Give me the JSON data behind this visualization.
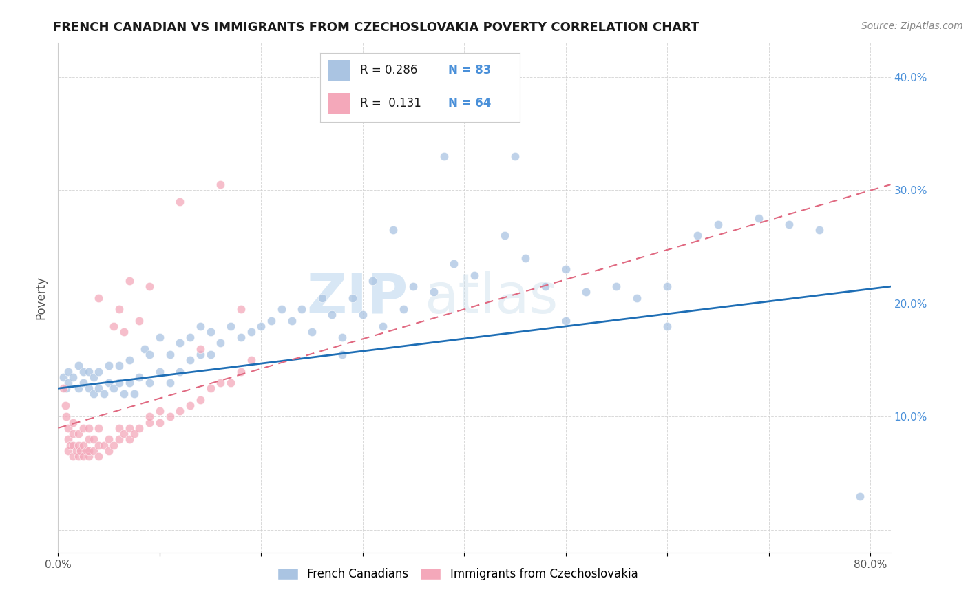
{
  "title": "FRENCH CANADIAN VS IMMIGRANTS FROM CZECHOSLOVAKIA POVERTY CORRELATION CHART",
  "source": "Source: ZipAtlas.com",
  "ylabel": "Poverty",
  "xlim": [
    0.0,
    0.82
  ],
  "ylim": [
    -0.02,
    0.43
  ],
  "blue_color": "#aac4e2",
  "pink_color": "#f4a8ba",
  "blue_line_color": "#1e6eb5",
  "pink_line_color": "#e06880",
  "watermark_text": "ZIP",
  "watermark_text2": "atlas",
  "legend_R1": "R = 0.286",
  "legend_N1": "N = 83",
  "legend_R2": "R =  0.131",
  "legend_N2": "N = 64",
  "blue_scatter_x": [
    0.005,
    0.008,
    0.01,
    0.01,
    0.015,
    0.02,
    0.02,
    0.025,
    0.025,
    0.03,
    0.03,
    0.035,
    0.035,
    0.04,
    0.04,
    0.045,
    0.05,
    0.05,
    0.055,
    0.06,
    0.06,
    0.065,
    0.07,
    0.07,
    0.075,
    0.08,
    0.085,
    0.09,
    0.09,
    0.1,
    0.1,
    0.11,
    0.11,
    0.12,
    0.12,
    0.13,
    0.13,
    0.14,
    0.14,
    0.15,
    0.15,
    0.16,
    0.17,
    0.18,
    0.19,
    0.2,
    0.21,
    0.22,
    0.23,
    0.24,
    0.25,
    0.26,
    0.27,
    0.28,
    0.29,
    0.3,
    0.31,
    0.32,
    0.34,
    0.35,
    0.37,
    0.39,
    0.41,
    0.44,
    0.46,
    0.48,
    0.5,
    0.52,
    0.55,
    0.57,
    0.6,
    0.63,
    0.65,
    0.69,
    0.72,
    0.75,
    0.79,
    0.5,
    0.38,
    0.45,
    0.33,
    0.28,
    0.6
  ],
  "blue_scatter_y": [
    0.135,
    0.125,
    0.14,
    0.13,
    0.135,
    0.125,
    0.145,
    0.13,
    0.14,
    0.125,
    0.14,
    0.12,
    0.135,
    0.125,
    0.14,
    0.12,
    0.13,
    0.145,
    0.125,
    0.13,
    0.145,
    0.12,
    0.13,
    0.15,
    0.12,
    0.135,
    0.16,
    0.13,
    0.155,
    0.14,
    0.17,
    0.13,
    0.155,
    0.14,
    0.165,
    0.15,
    0.17,
    0.155,
    0.18,
    0.155,
    0.175,
    0.165,
    0.18,
    0.17,
    0.175,
    0.18,
    0.185,
    0.195,
    0.185,
    0.195,
    0.175,
    0.205,
    0.19,
    0.17,
    0.205,
    0.19,
    0.22,
    0.18,
    0.195,
    0.215,
    0.21,
    0.235,
    0.225,
    0.26,
    0.24,
    0.215,
    0.23,
    0.21,
    0.215,
    0.205,
    0.215,
    0.26,
    0.27,
    0.275,
    0.27,
    0.265,
    0.03,
    0.185,
    0.33,
    0.33,
    0.265,
    0.155,
    0.18
  ],
  "pink_scatter_x": [
    0.005,
    0.007,
    0.008,
    0.01,
    0.01,
    0.01,
    0.012,
    0.015,
    0.015,
    0.015,
    0.015,
    0.018,
    0.02,
    0.02,
    0.02,
    0.022,
    0.025,
    0.025,
    0.025,
    0.028,
    0.03,
    0.03,
    0.03,
    0.03,
    0.035,
    0.035,
    0.04,
    0.04,
    0.04,
    0.045,
    0.05,
    0.05,
    0.055,
    0.06,
    0.06,
    0.065,
    0.07,
    0.07,
    0.075,
    0.08,
    0.09,
    0.09,
    0.1,
    0.1,
    0.11,
    0.12,
    0.13,
    0.14,
    0.15,
    0.16,
    0.17,
    0.18,
    0.19,
    0.055,
    0.065,
    0.08,
    0.04,
    0.06,
    0.07,
    0.09,
    0.14,
    0.18,
    0.12,
    0.16
  ],
  "pink_scatter_y": [
    0.125,
    0.11,
    0.1,
    0.09,
    0.08,
    0.07,
    0.075,
    0.065,
    0.075,
    0.085,
    0.095,
    0.07,
    0.065,
    0.075,
    0.085,
    0.07,
    0.065,
    0.075,
    0.09,
    0.07,
    0.065,
    0.07,
    0.08,
    0.09,
    0.07,
    0.08,
    0.065,
    0.075,
    0.09,
    0.075,
    0.07,
    0.08,
    0.075,
    0.08,
    0.09,
    0.085,
    0.08,
    0.09,
    0.085,
    0.09,
    0.095,
    0.1,
    0.095,
    0.105,
    0.1,
    0.105,
    0.11,
    0.115,
    0.125,
    0.13,
    0.13,
    0.14,
    0.15,
    0.18,
    0.175,
    0.185,
    0.205,
    0.195,
    0.22,
    0.215,
    0.16,
    0.195,
    0.29,
    0.305
  ],
  "blue_trend_x": [
    0.0,
    0.82
  ],
  "blue_trend_y": [
    0.125,
    0.215
  ],
  "pink_trend_x": [
    0.0,
    0.82
  ],
  "pink_trend_y": [
    0.09,
    0.305
  ],
  "background_color": "#ffffff",
  "grid_color": "#d0d0d0",
  "ytick_color": "#4a90d9",
  "xtick_label_color": "#555555",
  "ylabel_color": "#555555",
  "title_color": "#1a1a1a",
  "source_color": "#888888",
  "legend_text_color": "#1a1a1a",
  "legend_num_color": "#4a90d9"
}
